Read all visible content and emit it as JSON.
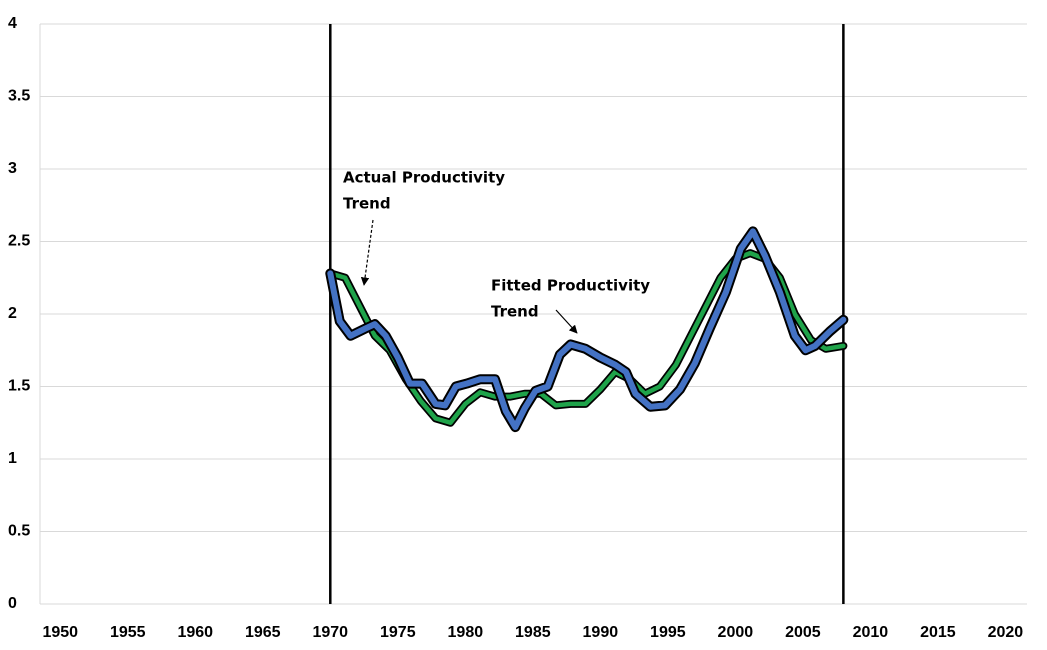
{
  "chart_data": {
    "type": "line",
    "ylim": [
      0,
      4
    ],
    "yticks": [
      0,
      0.5,
      1,
      1.5,
      2,
      2.5,
      3,
      3.5,
      4
    ],
    "xlim": [
      1948.5,
      2021.6
    ],
    "xticks": [
      1950,
      1955,
      1960,
      1965,
      1970,
      1975,
      1980,
      1985,
      1990,
      1995,
      2000,
      2005,
      2010,
      2015,
      2020
    ],
    "grid": true,
    "vlines": [
      1970,
      2008
    ],
    "annotations": [
      {
        "lines": [
          "Actual Productivity",
          "Trend"
        ]
      },
      {
        "lines": [
          "Fitted Productivity",
          "Trend"
        ]
      }
    ],
    "series": [
      {
        "color": "#1fa34a",
        "x": [
          1970,
          1971.1,
          1972.2,
          1973.3,
          1974.4,
          1975.6,
          1976.7,
          1977.8,
          1978.9,
          1980,
          1981.1,
          1982.2,
          1983.3,
          1984.4,
          1985.6,
          1986.7,
          1987.8,
          1988.9,
          1990,
          1991.1,
          1992.2,
          1993.3,
          1994.4,
          1995.6,
          1996.7,
          1997.8,
          1998.9,
          2000,
          2001.1,
          2002.2,
          2003.3,
          2004.4,
          2005.6,
          2006.7,
          2008
        ],
        "values": [
          2.28,
          2.25,
          2.05,
          1.85,
          1.75,
          1.55,
          1.4,
          1.28,
          1.25,
          1.38,
          1.46,
          1.43,
          1.43,
          1.45,
          1.45,
          1.37,
          1.38,
          1.38,
          1.48,
          1.6,
          1.55,
          1.45,
          1.5,
          1.65,
          1.85,
          2.05,
          2.25,
          2.38,
          2.42,
          2.38,
          2.25,
          2.0,
          1.82,
          1.76,
          1.78
        ]
      },
      {
        "color": "#4472c4",
        "x": [
          1970,
          1970.7,
          1971.5,
          1972.6,
          1973.3,
          1974.1,
          1975,
          1975.9,
          1976.8,
          1977.8,
          1978.5,
          1979.3,
          1980.1,
          1981.1,
          1982.2,
          1983,
          1983.7,
          1984.4,
          1985.2,
          1986.1,
          1987,
          1987.8,
          1988.9,
          1990,
          1991.1,
          1991.9,
          1992.6,
          1993.7,
          1994.8,
          1995.9,
          1997,
          1998.1,
          1999.3,
          2000.4,
          2001.3,
          2002.2,
          2003.3,
          2004.4,
          2005.2,
          2005.9,
          2007,
          2008
        ],
        "values": [
          2.28,
          1.95,
          1.85,
          1.9,
          1.93,
          1.85,
          1.7,
          1.52,
          1.52,
          1.38,
          1.37,
          1.5,
          1.52,
          1.55,
          1.55,
          1.33,
          1.22,
          1.35,
          1.47,
          1.5,
          1.72,
          1.79,
          1.76,
          1.7,
          1.65,
          1.6,
          1.45,
          1.36,
          1.37,
          1.48,
          1.66,
          1.9,
          2.15,
          2.45,
          2.57,
          2.4,
          2.15,
          1.85,
          1.75,
          1.78,
          1.88,
          1.96
        ]
      }
    ]
  }
}
